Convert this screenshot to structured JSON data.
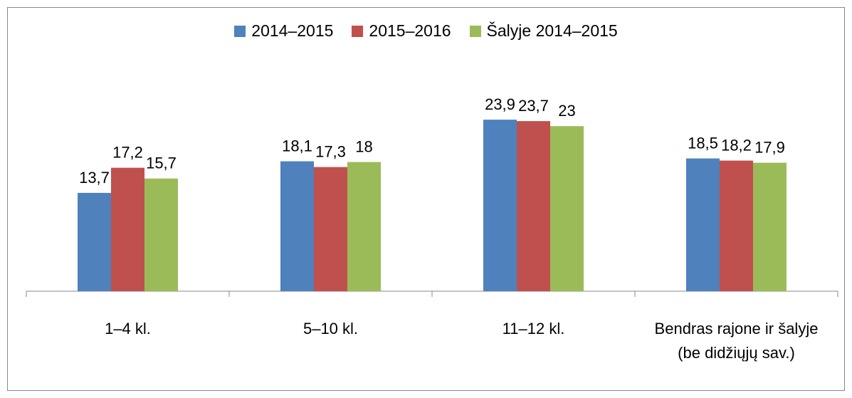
{
  "chart_data": {
    "type": "bar",
    "categories": [
      "1–4 kl.",
      "5–10 kl.",
      "11–12 kl.",
      "Bendras rajone ir šalyje (be didžiųjų sav.)"
    ],
    "series": [
      {
        "name": "2014–2015",
        "color": "#4f81bd",
        "values": [
          13.7,
          18.1,
          23.9,
          18.5
        ],
        "value_labels": [
          "13,7",
          "18,1",
          "23,9",
          "18,5"
        ]
      },
      {
        "name": "2015–2016",
        "color": "#c0504d",
        "values": [
          17.2,
          17.3,
          23.7,
          18.2
        ],
        "value_labels": [
          "17,2",
          "17,3",
          "23,7",
          "18,2"
        ]
      },
      {
        "name": "Šalyje 2014–2015",
        "color": "#9bbb59",
        "values": [
          15.7,
          18,
          23,
          17.9
        ],
        "value_labels": [
          "15,7",
          "18",
          "23",
          "17,9"
        ]
      }
    ],
    "ylim": [
      0,
      25
    ],
    "legend": "top"
  }
}
